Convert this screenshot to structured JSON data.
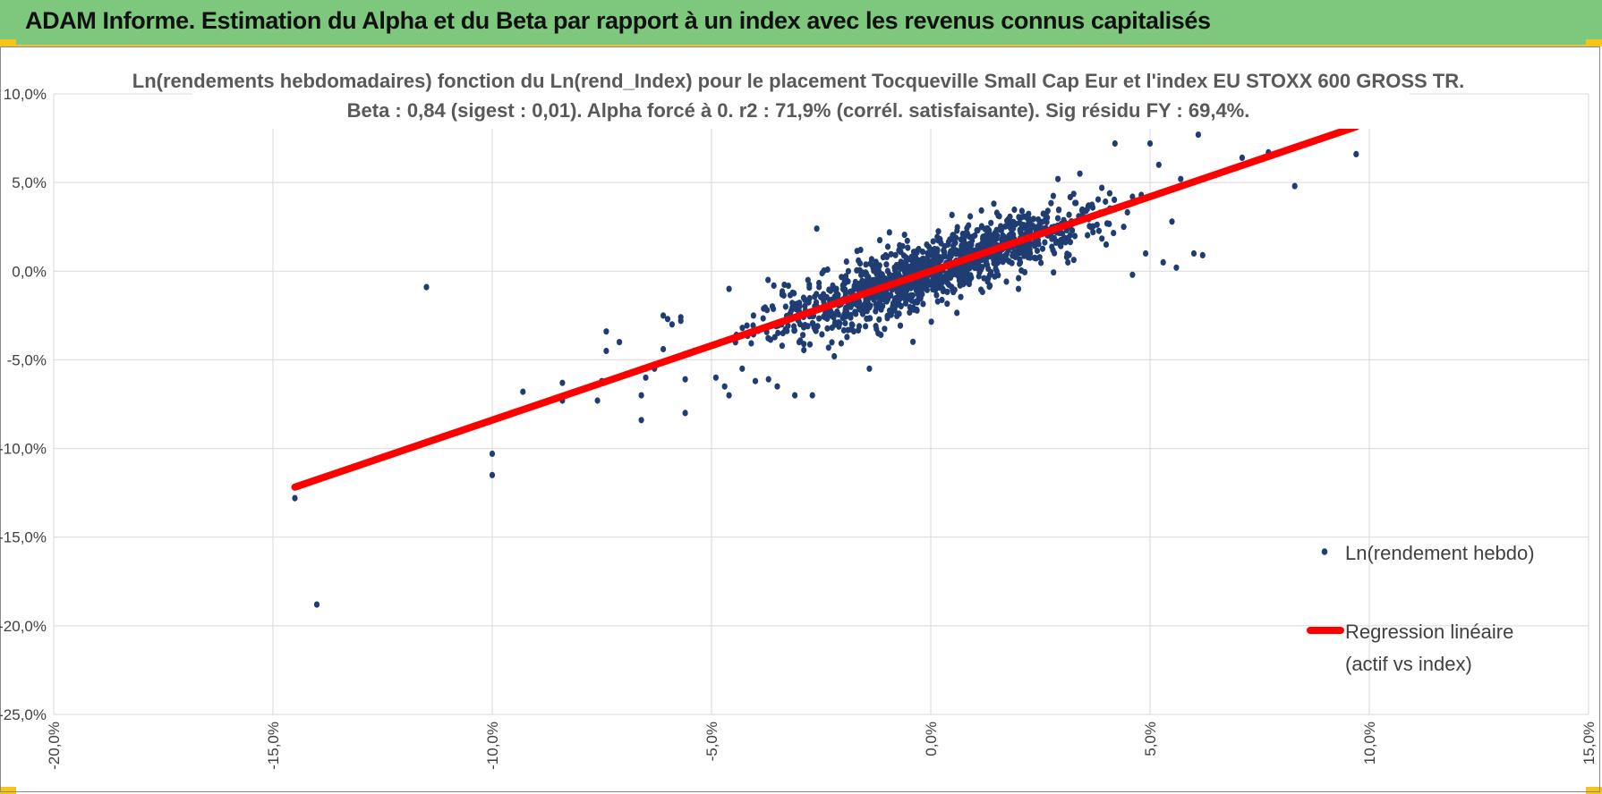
{
  "header": {
    "title": "ADAM Informe. Estimation du Alpha et du Beta par rapport à un index avec les revenus connus capitalisés"
  },
  "colors": {
    "banner": "#7dc87d",
    "points": "#1f3d73",
    "regression": "#ff0000",
    "grid": "#d9d9d9",
    "accent": "#f5c518"
  },
  "chart_data": {
    "type": "scatter",
    "title": "Ln(rendements hebdomadaires) fonction du Ln(rend_Index) pour le placement Tocqueville Small Cap Eur et l'index EU STOXX 600 GROSS TR.",
    "subtitle": "Beta : 0,84 (sigest : 0,01). Alpha forcé à 0. r2 : 71,9% (corrél. satisfaisante). Sig résidu FY : 69,4%.",
    "xlabel": "",
    "ylabel": "",
    "xlim": [
      -0.2,
      0.15
    ],
    "ylim": [
      -0.25,
      0.1
    ],
    "x_ticks": [
      -0.2,
      -0.15,
      -0.1,
      -0.05,
      0.0,
      0.05,
      0.1,
      0.15
    ],
    "y_ticks": [
      0.1,
      0.05,
      0.0,
      -0.05,
      -0.1,
      -0.15,
      -0.2,
      -0.25
    ],
    "x_tick_labels": [
      "-20,0%",
      "-15,0%",
      "-10,0%",
      "-5,0%",
      "0,0%",
      "5,0%",
      "10,0%",
      "15,0%"
    ],
    "y_tick_labels": [
      "10,0%",
      "5,0%",
      "0,0%",
      "-5,0%",
      "-10,0%",
      "-15,0%",
      "-20,0%",
      "-25,0%"
    ],
    "grid": true,
    "legend_position": "right",
    "series": [
      {
        "name": "Ln(rendement hebdo)",
        "kind": "scatter",
        "n_points": 1400,
        "core_points": [
          [
            -0.145,
            -0.128
          ],
          [
            -0.14,
            -0.188
          ],
          [
            -0.115,
            -0.009
          ],
          [
            -0.1,
            -0.103
          ],
          [
            -0.1,
            -0.115
          ],
          [
            -0.093,
            -0.068
          ],
          [
            -0.084,
            -0.063
          ],
          [
            -0.084,
            -0.073
          ],
          [
            -0.076,
            -0.073
          ],
          [
            -0.075,
            -0.062
          ],
          [
            -0.074,
            -0.034
          ],
          [
            -0.074,
            -0.045
          ],
          [
            -0.071,
            -0.04
          ],
          [
            -0.066,
            -0.084
          ],
          [
            -0.066,
            -0.07
          ],
          [
            -0.065,
            -0.06
          ],
          [
            -0.065,
            -0.055
          ],
          [
            -0.063,
            -0.055
          ],
          [
            -0.061,
            -0.044
          ],
          [
            -0.061,
            -0.025
          ],
          [
            -0.06,
            -0.027
          ],
          [
            -0.059,
            -0.03
          ],
          [
            -0.057,
            -0.026
          ],
          [
            -0.057,
            -0.028
          ],
          [
            -0.056,
            -0.08
          ],
          [
            -0.056,
            -0.061
          ],
          [
            -0.054,
            -0.045
          ],
          [
            -0.049,
            -0.06
          ],
          [
            -0.048,
            -0.04
          ],
          [
            -0.047,
            -0.065
          ],
          [
            -0.046,
            -0.07
          ],
          [
            -0.046,
            -0.01
          ],
          [
            -0.043,
            -0.055
          ],
          [
            -0.04,
            -0.062
          ],
          [
            -0.037,
            -0.061
          ],
          [
            -0.035,
            -0.065
          ],
          [
            -0.034,
            -0.03
          ],
          [
            -0.031,
            -0.07
          ],
          [
            -0.03,
            -0.04
          ],
          [
            -0.029,
            -0.015
          ],
          [
            -0.028,
            -0.005
          ],
          [
            -0.027,
            -0.07
          ],
          [
            -0.026,
            0.024
          ],
          [
            -0.022,
            -0.048
          ],
          [
            -0.02,
            -0.01
          ],
          [
            -0.018,
            -0.03
          ],
          [
            -0.016,
            0.012
          ],
          [
            -0.014,
            -0.055
          ],
          [
            -0.012,
            -0.035
          ],
          [
            -0.01,
            0.008
          ],
          [
            0.02,
            -0.01
          ],
          [
            0.022,
            0.03
          ],
          [
            0.029,
            0.052
          ],
          [
            0.031,
            0.008
          ],
          [
            0.034,
            0.055
          ],
          [
            0.036,
            0.037
          ],
          [
            0.037,
            0.022
          ],
          [
            0.039,
            0.047
          ],
          [
            0.04,
            0.015
          ],
          [
            0.042,
            0.035
          ],
          [
            0.042,
            0.072
          ],
          [
            0.044,
            0.025
          ],
          [
            0.046,
            -0.002
          ],
          [
            0.046,
            0.042
          ],
          [
            0.048,
            0.043
          ],
          [
            0.049,
            0.01
          ],
          [
            0.05,
            0.072
          ],
          [
            0.052,
            0.06
          ],
          [
            0.053,
            0.005
          ],
          [
            0.055,
            0.028
          ],
          [
            0.056,
            0.002
          ],
          [
            0.057,
            0.052
          ],
          [
            0.06,
            0.01
          ],
          [
            0.061,
            0.077
          ],
          [
            0.062,
            0.009
          ],
          [
            0.071,
            0.064
          ],
          [
            0.077,
            0.067
          ],
          [
            0.083,
            0.048
          ],
          [
            0.083,
            0.07
          ],
          [
            0.097,
            0.066
          ]
        ],
        "cloud": {
          "center_x": 0.0,
          "center_y": 0.0,
          "sd_x": 0.018,
          "sd_y": 0.012,
          "beta": 0.84,
          "resid_sd": 0.009
        }
      },
      {
        "name": "Regression linéaire (actif vs index)",
        "kind": "line",
        "x": [
          -0.145,
          0.097
        ],
        "y": [
          -0.1218,
          0.0815
        ]
      }
    ],
    "legend": [
      {
        "label_lines": [
          "Ln(rendement hebdo)"
        ],
        "marker": "point"
      },
      {
        "label_lines": [
          "Regression linéaire",
          "(actif vs index)"
        ],
        "marker": "line"
      }
    ]
  }
}
